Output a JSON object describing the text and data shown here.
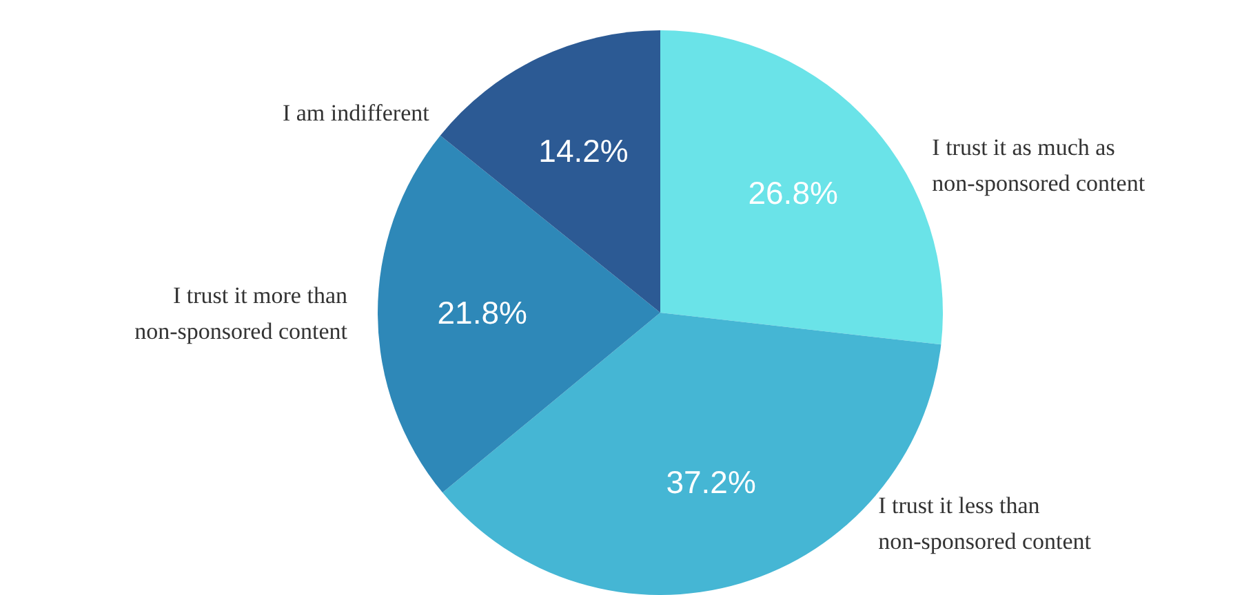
{
  "chart_data": {
    "type": "pie",
    "categories": [
      "I trust it as much as non-sponsored content",
      "I trust it less than non-sponsored content",
      "I trust it more than non-sponsored content",
      "I am indifferent"
    ],
    "values": [
      26.8,
      37.2,
      21.8,
      14.2
    ],
    "value_labels": [
      "26.8%",
      "37.2%",
      "21.8%",
      "14.2%"
    ],
    "colors": [
      "#6ae3e8",
      "#45b6d4",
      "#2e88b8",
      "#2c5a94"
    ]
  }
}
